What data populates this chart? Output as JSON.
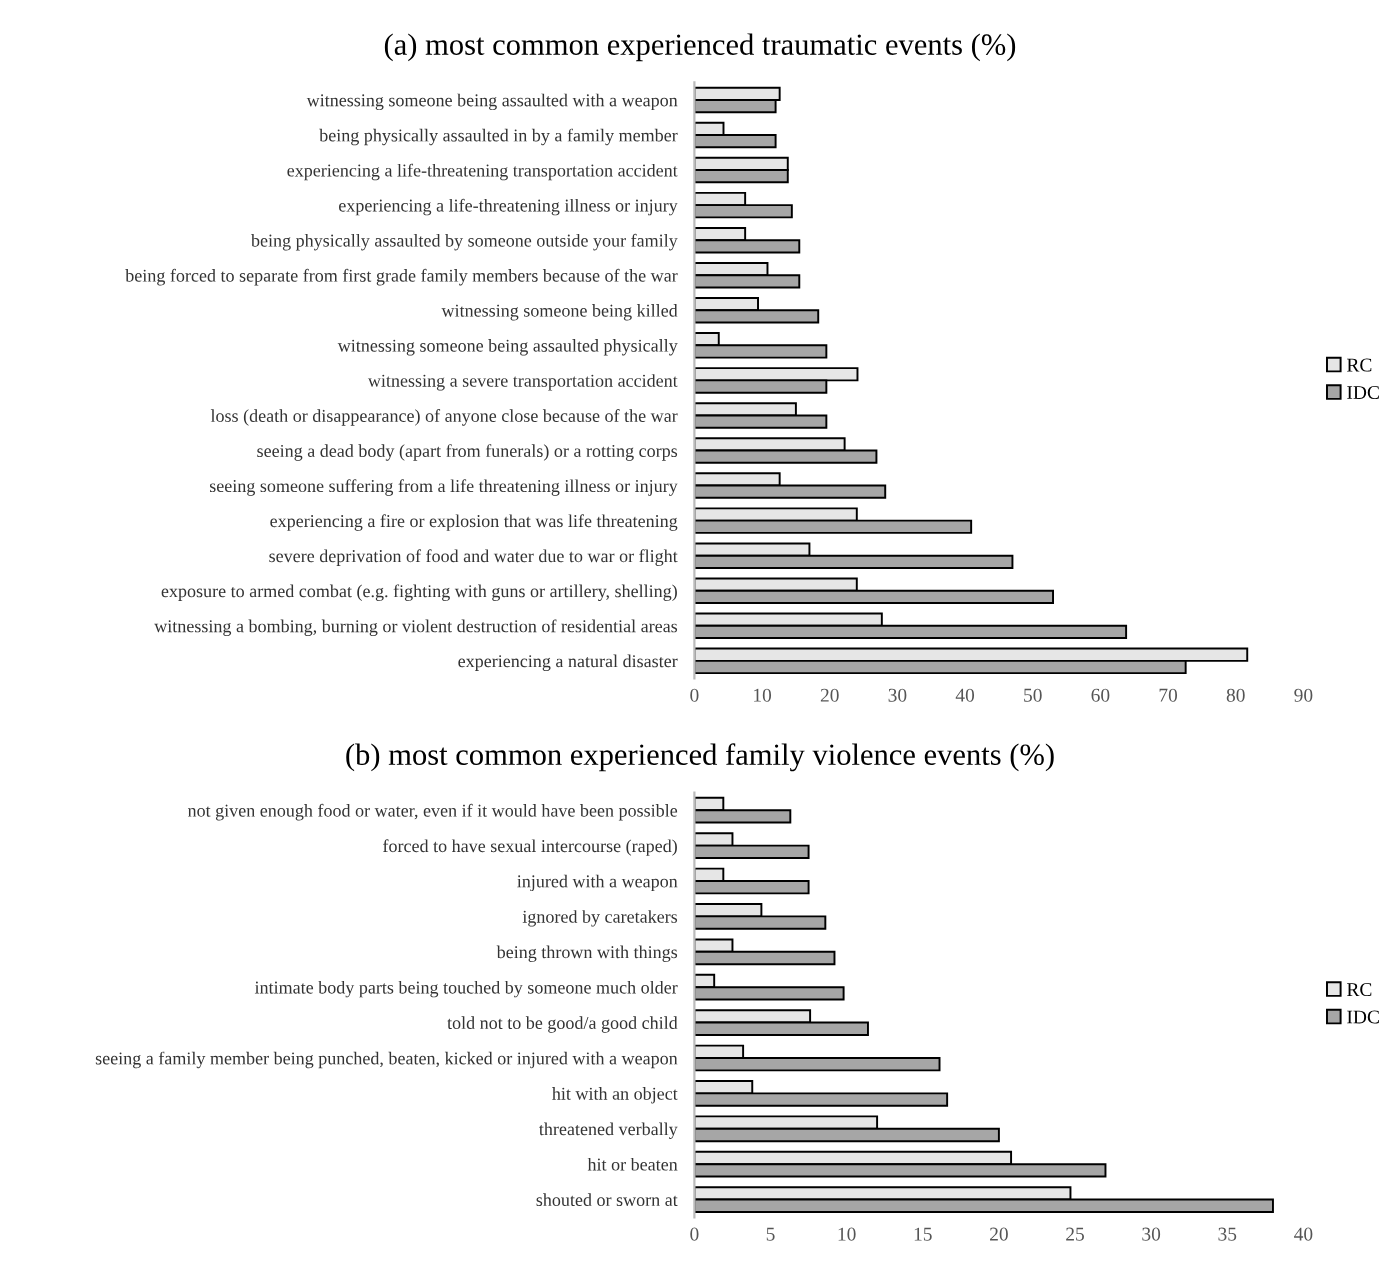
{
  "chart_data": [
    {
      "type": "bar",
      "orientation": "horizontal",
      "title": "(a) most common experienced traumatic events (%)",
      "categories": [
        "witnessing someone being assaulted with a weapon",
        "being physically assaulted in by a family member",
        "experiencing a life-threatening transportation accident",
        "experiencing a life-threatening illness or injury",
        "being physically assaulted by someone outside your family",
        "being forced to separate from first grade family members because of the war",
        "witnessing someone being killed",
        "witnessing someone being assaulted physically",
        "witnessing a severe transportation accident",
        "loss (death or disappearance) of anyone close because of the war",
        "seeing a dead body (apart from funerals) or a rotting corps",
        "seeing someone suffering from a life threatening illness or injury",
        "experiencing a fire or explosion that was life threatening",
        "severe deprivation of food and water due to war or flight",
        "exposure to armed combat (e.g. fighting with guns or artillery, shelling)",
        "witnessing a bombing, burning or violent destruction of residential areas",
        "experiencing a natural disaster"
      ],
      "series": [
        {
          "name": "RC",
          "color": "#e6e6e6",
          "values": [
            12.6,
            4.3,
            13.8,
            7.5,
            7.5,
            10.8,
            9.4,
            3.6,
            24.1,
            15,
            22.2,
            12.6,
            24,
            17,
            24,
            27.7,
            81.7
          ]
        },
        {
          "name": "IDC",
          "color": "#a6a6a6",
          "values": [
            12,
            12,
            13.8,
            14.4,
            15.5,
            15.5,
            18.3,
            19.5,
            19.5,
            19.5,
            26.9,
            28.2,
            40.9,
            47,
            53,
            63.8,
            72.6
          ]
        }
      ],
      "xlim": [
        0,
        90
      ],
      "xticks": [
        0,
        10,
        20,
        30,
        40,
        50,
        60,
        70,
        80,
        90
      ],
      "grid": false,
      "legend": "right"
    },
    {
      "type": "bar",
      "orientation": "horizontal",
      "title": "(b) most common experienced family violence events (%)",
      "categories": [
        "not given enough food or water, even if it would have been possible",
        "forced to have sexual intercourse (raped)",
        "injured with a weapon",
        "ignored by caretakers",
        "being thrown with things",
        "intimate body parts being touched by someone much older",
        "told not to be good/a good child",
        "seeing a family member being punched, beaten, kicked or injured with a weapon",
        "hit with an object",
        "threatened verbally",
        "hit or beaten",
        "shouted or sworn at"
      ],
      "series": [
        {
          "name": "RC",
          "color": "#e6e6e6",
          "values": [
            1.9,
            2.5,
            1.9,
            4.4,
            2.5,
            1.3,
            7.6,
            3.2,
            3.8,
            12,
            20.8,
            24.7
          ]
        },
        {
          "name": "IDC",
          "color": "#a6a6a6",
          "values": [
            6.3,
            7.5,
            7.5,
            8.6,
            9.2,
            9.8,
            11.4,
            16.1,
            16.6,
            20,
            27,
            38
          ]
        }
      ],
      "xlim": [
        0,
        40
      ],
      "xticks": [
        0,
        5,
        10,
        15,
        20,
        25,
        30,
        35,
        40
      ],
      "grid": false,
      "legend": "right"
    }
  ]
}
